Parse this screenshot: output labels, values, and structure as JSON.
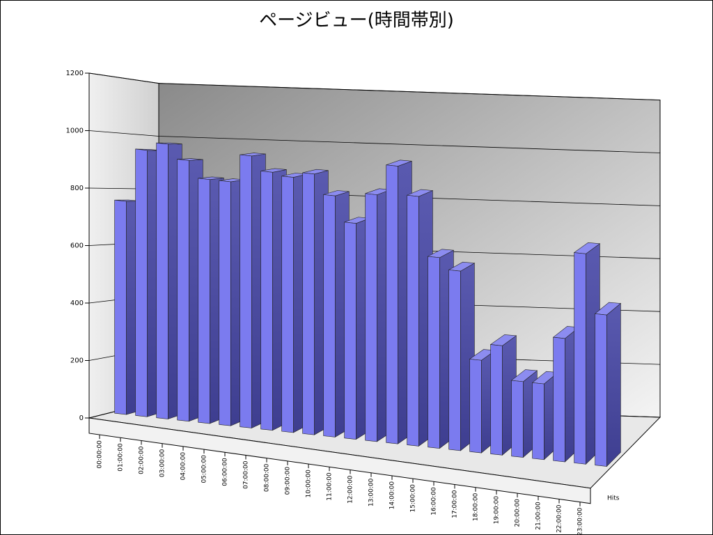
{
  "chart_data": {
    "type": "bar3d",
    "title": "ページビュー(時間帯別)",
    "categories": [
      "00:00:00",
      "01:00:00",
      "02:00:00",
      "03:00:00",
      "04:00:00",
      "05:00:00",
      "06:00:00",
      "07:00:00",
      "08:00:00",
      "09:00:00",
      "10:00:00",
      "11:00:00",
      "12:00:00",
      "13:00:00",
      "14:00:00",
      "15:00:00",
      "16:00:00",
      "17:00:00",
      "18:00:00",
      "19:00:00",
      "20:00:00",
      "21:00:00",
      "22:00:00",
      "23:00:00"
    ],
    "series": [
      {
        "name": "Hits",
        "color": "#7b7bef",
        "values": [
          760,
          950,
          980,
          930,
          870,
          870,
          970,
          920,
          910,
          930,
          860,
          770,
          880,
          990,
          890,
          680,
          640,
          330,
          390,
          270,
          270,
          440,
          750,
          540
        ]
      }
    ],
    "ylim": [
      0,
      1200
    ],
    "yticks": [
      0,
      200,
      400,
      600,
      800,
      1000,
      1200
    ],
    "grid": true
  }
}
